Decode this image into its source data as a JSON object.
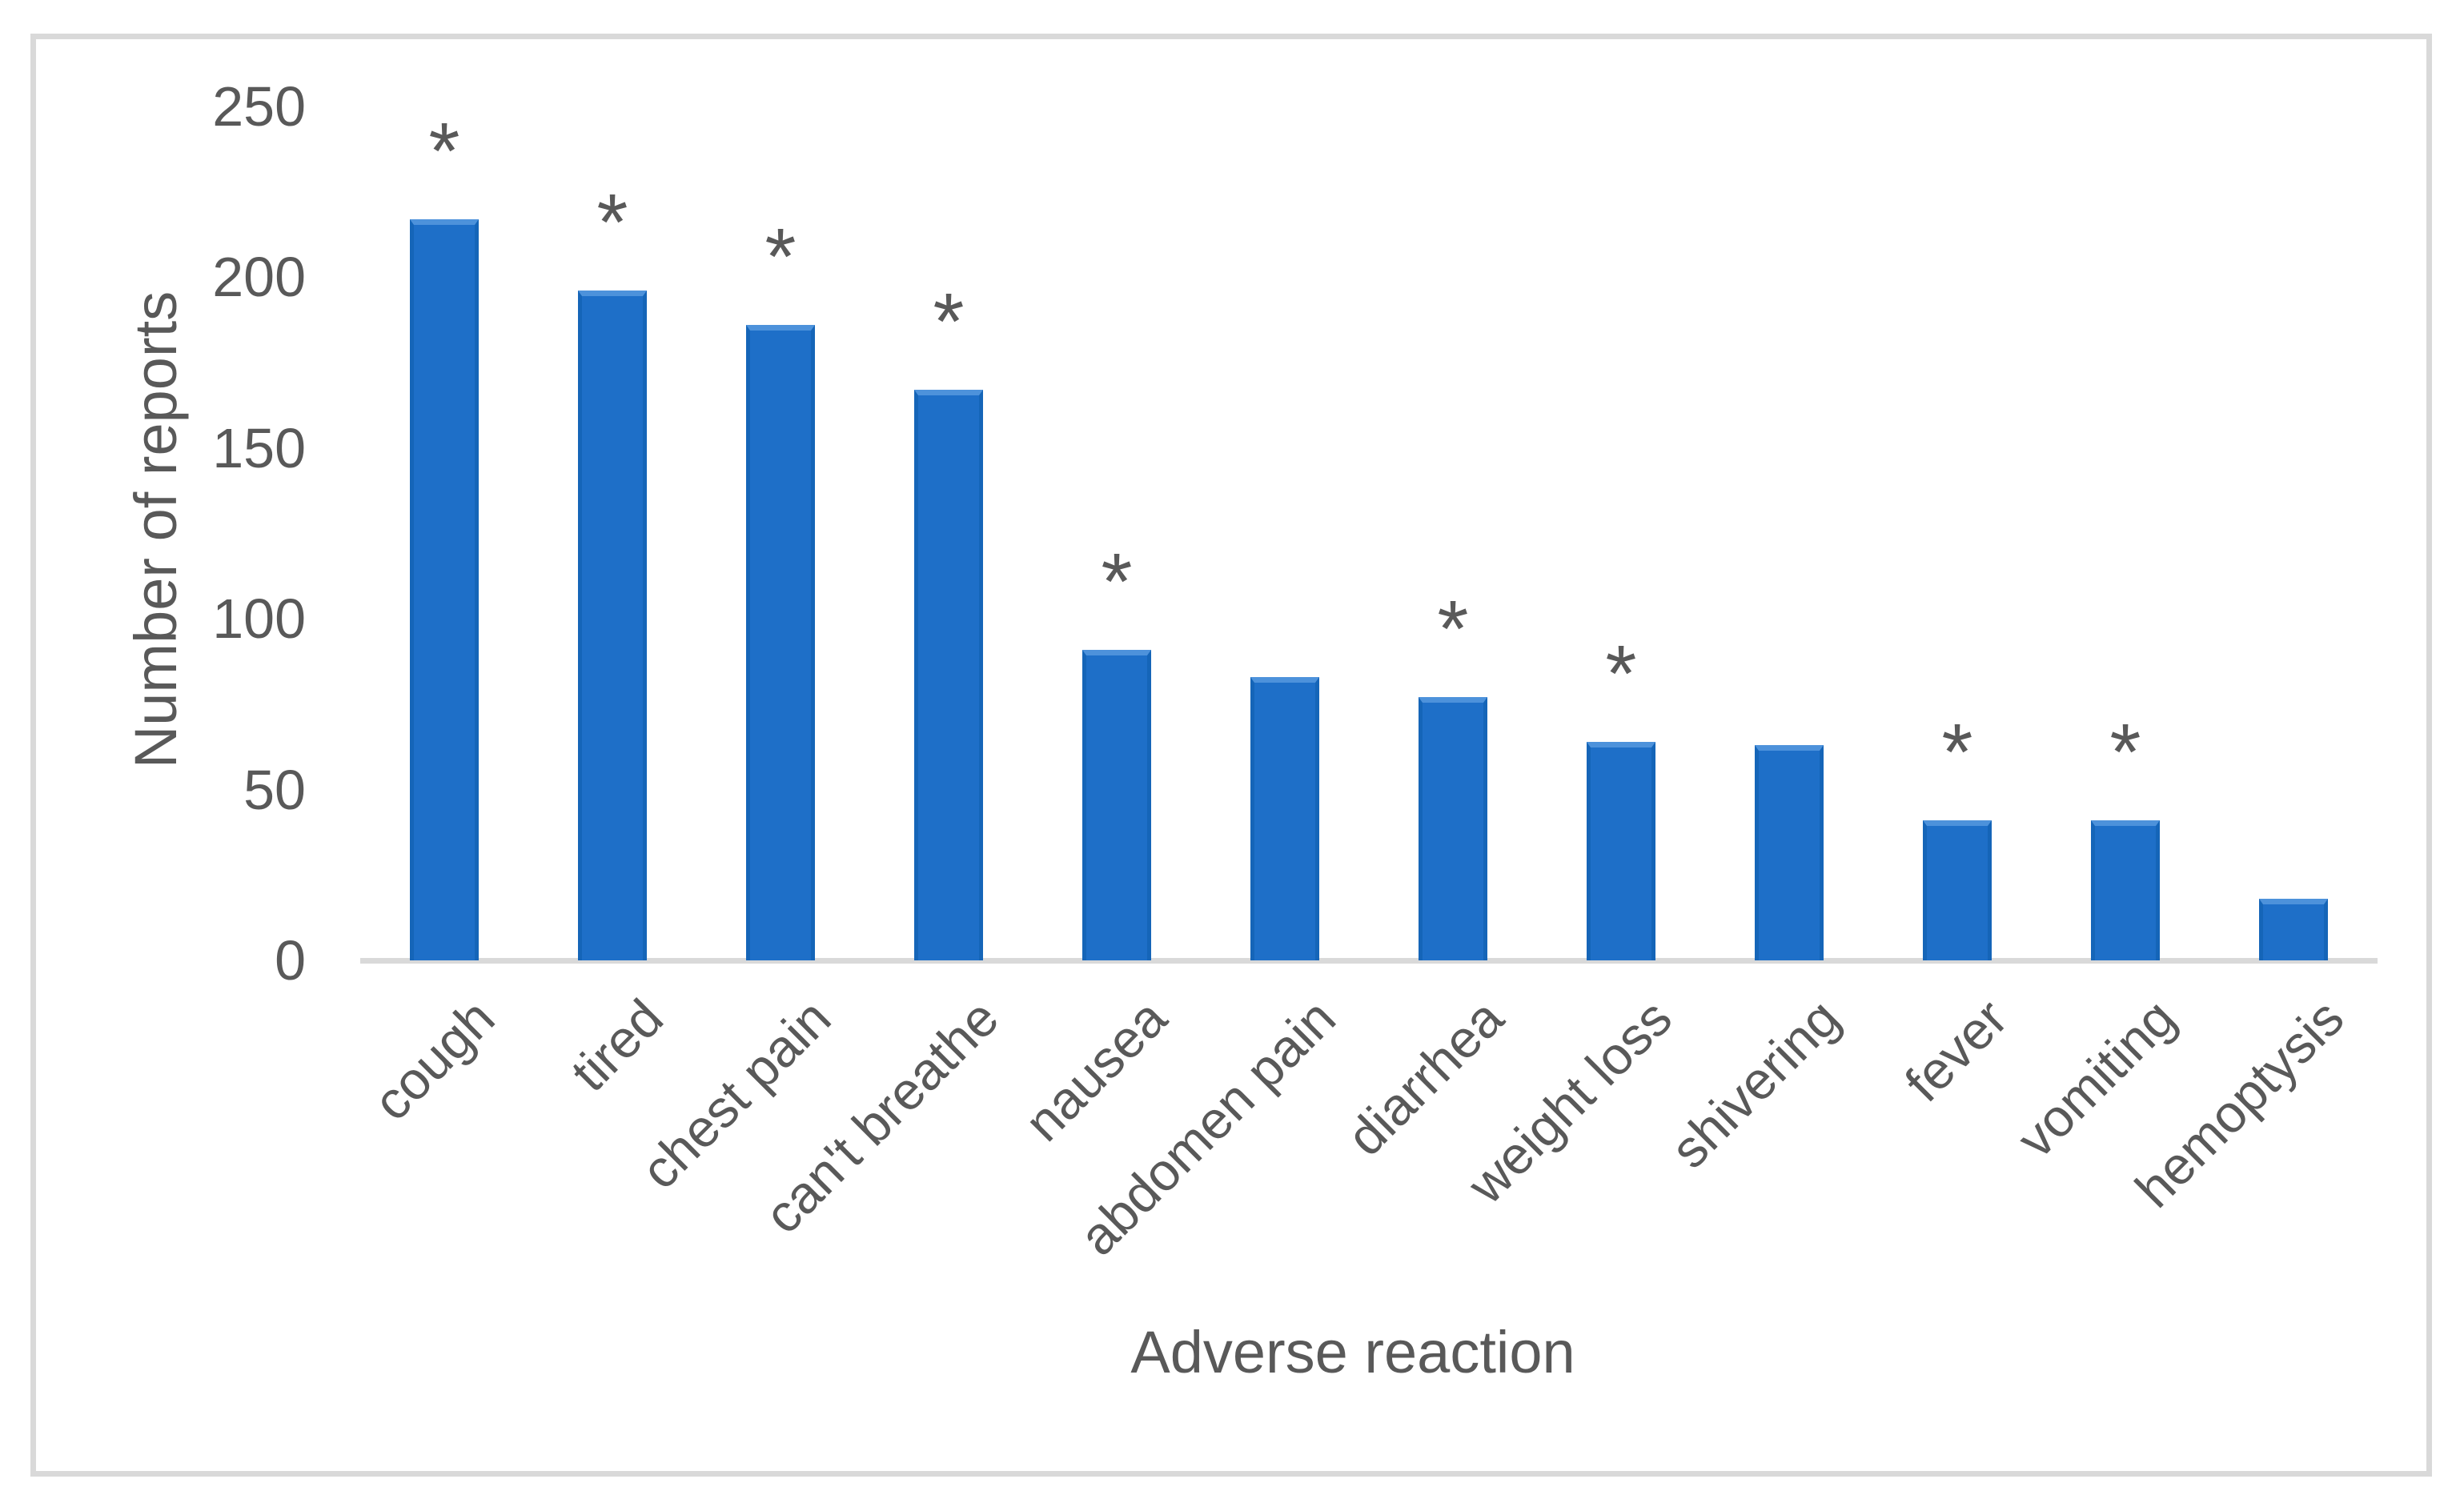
{
  "chart_data": {
    "type": "bar",
    "title": "",
    "xlabel": "Adverse reaction",
    "ylabel": "Number of reports",
    "categories": [
      "cough",
      "tired",
      "chest pain",
      "can't breathe",
      "nausea",
      "abdomen pain",
      "diarrhea",
      "weight loss",
      "shivering",
      "fever",
      "vomiting",
      "hemoptysis"
    ],
    "values": [
      217,
      196,
      186,
      167,
      91,
      83,
      77,
      64,
      63,
      41,
      41,
      18
    ],
    "significance_marks": [
      true,
      true,
      true,
      true,
      true,
      false,
      true,
      true,
      false,
      true,
      true,
      false
    ],
    "significance_symbol": "*",
    "y_ticks": [
      0,
      50,
      100,
      150,
      200,
      250
    ],
    "ylim": [
      0,
      250
    ],
    "grid": false,
    "legend": "none",
    "bar_color": "#1e6fc8",
    "bar_top_highlight_color": "#4d92db",
    "bar_edge_color": "#1565b8",
    "axis_line_color": "#d9d9d9",
    "frame_color": "#d9d9d9",
    "text_color": "#595959"
  }
}
